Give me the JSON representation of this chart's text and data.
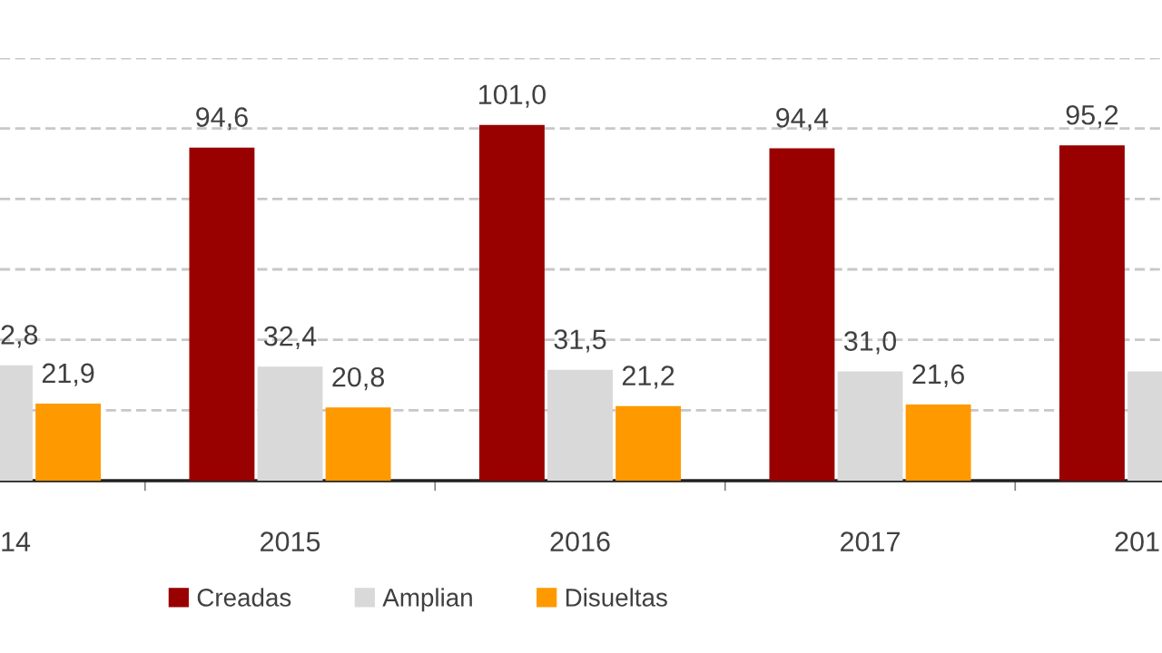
{
  "chart_data": {
    "type": "bar",
    "categories": [
      "14",
      "2015",
      "2016",
      "2017",
      "201"
    ],
    "series": [
      {
        "name": "Creadas",
        "color": "#990000",
        "values": [
          null,
          94.6,
          101.0,
          94.4,
          95.2
        ],
        "value_labels": [
          null,
          "94,6",
          "101,0",
          "94,4",
          "95,2"
        ]
      },
      {
        "name": "Amplian",
        "color": "#d9d9d9",
        "values": [
          32.8,
          32.4,
          31.5,
          31.0,
          31.0
        ],
        "value_labels": [
          null,
          "32,4",
          "31,5",
          "31,0",
          null
        ]
      },
      {
        "name": "Disueltas",
        "color": "#ff9900",
        "values": [
          21.9,
          20.8,
          21.2,
          21.6,
          null
        ],
        "value_labels": [
          "21,9",
          "20,8",
          "21,2",
          "21,6",
          null
        ]
      }
    ],
    "ylim": [
      0,
      120
    ],
    "yticks": [
      {
        "value": 20,
        "label": null
      },
      {
        "value": 40,
        "label": null
      },
      {
        "value": 60,
        "label": null
      },
      {
        "value": 80,
        "label": null
      },
      {
        "value": 100,
        "label": null
      },
      {
        "value": 120,
        "label": null
      }
    ],
    "annotations": [
      {
        "text": "2,8",
        "x": "14",
        "y": 32.8
      }
    ],
    "grid": "y",
    "legend": "bottom",
    "tick_labels": "x"
  }
}
